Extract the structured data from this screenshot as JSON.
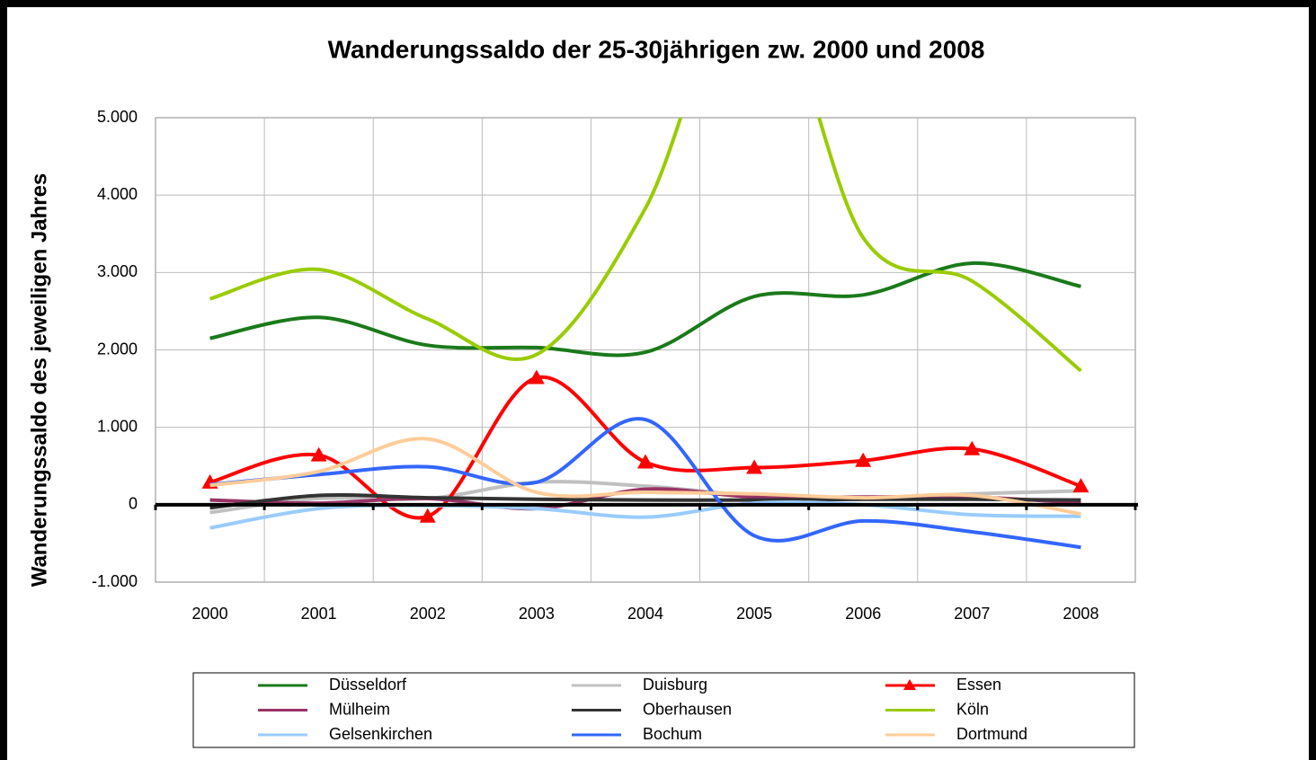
{
  "chart_data": {
    "type": "line",
    "title": "Wanderungssaldo der 25-30jährigen zw. 2000 und 2008",
    "y_label": "Wanderungssaldo des jeweiligen Jahres",
    "categories": [
      "2000",
      "2001",
      "2002",
      "2003",
      "2004",
      "2005",
      "2006",
      "2007",
      "2008"
    ],
    "ylim": [
      -1000,
      5000
    ],
    "yticks": [
      {
        "value": -1000,
        "label": "-1.000"
      },
      0,
      {
        "value": 1000,
        "label": "1.000"
      },
      {
        "value": 2000,
        "label": "2.000"
      },
      {
        "value": 3000,
        "label": "3.000"
      },
      {
        "value": 4000,
        "label": "4.000"
      },
      {
        "value": 5000,
        "label": "5.000"
      }
    ],
    "grid": true,
    "legend": "bottom",
    "series": [
      {
        "name": "Düsseldorf",
        "color": "#1a7a1a",
        "values": [
          2150,
          2420,
          2060,
          2030,
          1970,
          2690,
          2710,
          3120,
          2820
        ]
      },
      {
        "name": "Duisburg",
        "color": "#c0c0c0",
        "values": [
          -100,
          80,
          80,
          290,
          240,
          120,
          90,
          140,
          180
        ]
      },
      {
        "name": "Essen",
        "color": "#ff0000",
        "marker": "triangle",
        "values": [
          290,
          640,
          -150,
          1640,
          550,
          480,
          570,
          720,
          240
        ]
      },
      {
        "name": "Mülheim",
        "color": "#993366",
        "values": [
          60,
          20,
          80,
          -50,
          200,
          100,
          100,
          100,
          20
        ]
      },
      {
        "name": "Oberhausen",
        "color": "#333333",
        "values": [
          -40,
          120,
          90,
          70,
          60,
          60,
          70,
          70,
          60
        ]
      },
      {
        "name": "Köln",
        "color": "#99cc00",
        "values": [
          2660,
          3040,
          2400,
          1940,
          3830,
          7000,
          3450,
          2890,
          1730
        ]
      },
      {
        "name": "Gelsenkirchen",
        "color": "#99ccff",
        "values": [
          -300,
          -50,
          -10,
          -50,
          -160,
          20,
          0,
          -130,
          -150
        ]
      },
      {
        "name": "Bochum",
        "color": "#3366ff",
        "values": [
          260,
          390,
          490,
          290,
          1100,
          -400,
          -210,
          -350,
          -550
        ]
      },
      {
        "name": "Dortmund",
        "color": "#ffcc99",
        "values": [
          250,
          430,
          850,
          160,
          160,
          140,
          90,
          120,
          -120
        ]
      }
    ]
  }
}
